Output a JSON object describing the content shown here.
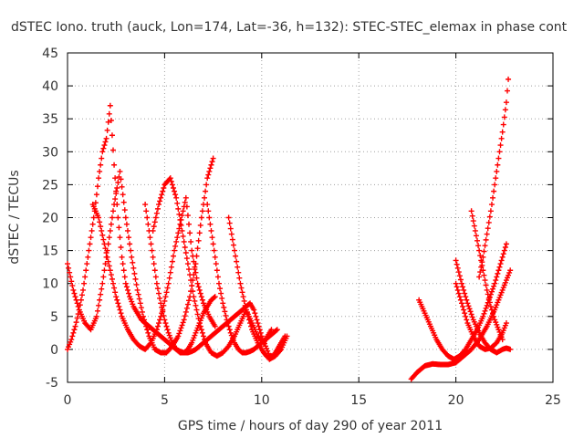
{
  "chart_data": {
    "type": "scatter",
    "title": "dSTEC Iono. truth (auck, Lon=174, Lat=-36, h=132): STEC-STEC_elemax in phase cont",
    "xlabel": "GPS time / hours of day 290 of year 2011",
    "ylabel": "dSTEC  / TECUs",
    "xlim": [
      0,
      25
    ],
    "ylim": [
      -5,
      45
    ],
    "xticks": [
      "0",
      "5",
      "10",
      "15",
      "20",
      "25"
    ],
    "yticks": [
      "-5",
      "0",
      "5",
      "10",
      "15",
      "20",
      "25",
      "30",
      "35",
      "40",
      "45"
    ],
    "grid": true,
    "marker": "plus",
    "color": "#ff0000",
    "series": [
      {
        "x": [
          0.0,
          0.2,
          0.4,
          0.6,
          0.8,
          1.0,
          1.2,
          1.4,
          1.6,
          1.8,
          2.0,
          2.2,
          2.4,
          2.6,
          2.8,
          3.0,
          3.2,
          3.4,
          3.6,
          3.8,
          4.0,
          4.2,
          4.4,
          4.6,
          4.8,
          5.0,
          5.2,
          5.4,
          5.6,
          5.8,
          6.0,
          6.2,
          6.4,
          6.6,
          6.8,
          7.0,
          7.2,
          7.4,
          7.6,
          7.8,
          8.0,
          8.2,
          8.4,
          8.6,
          8.8,
          9.0,
          9.2,
          9.4,
          9.6,
          9.8,
          10.0,
          10.2,
          10.4,
          10.6,
          10.8,
          11.0,
          11.2
        ],
        "y": [
          0.0,
          1.5,
          3.5,
          6.0,
          9.0,
          13.0,
          17.0,
          21.0,
          26.0,
          30.0,
          32.0,
          37.0,
          28.0,
          20.0,
          14.0,
          10.0,
          8.0,
          6.5,
          5.5,
          4.5,
          4.0,
          3.5,
          3.0,
          2.5,
          2.0,
          1.5,
          1.0,
          0.5,
          0.0,
          -0.3,
          -0.5,
          -0.5,
          -0.3,
          0.0,
          0.5,
          1.0,
          1.5,
          2.0,
          2.5,
          3.0,
          3.5,
          4.0,
          4.5,
          5.0,
          5.5,
          6.0,
          6.5,
          7.0,
          6.0,
          4.0,
          2.0,
          0.5,
          -1.0,
          -1.0,
          0.0,
          1.0,
          2.0
        ]
      },
      {
        "x": [
          0.0,
          0.3,
          0.6,
          0.9,
          1.2,
          1.5,
          1.8,
          2.1,
          2.4,
          2.7,
          3.0,
          3.3,
          3.6,
          3.9,
          4.2,
          4.5,
          4.8,
          5.1,
          5.4,
          5.7,
          6.0,
          6.3,
          6.6,
          6.9,
          7.2,
          7.5
        ],
        "y": [
          13.0,
          9.0,
          6.0,
          4.0,
          3.0,
          5.0,
          10.0,
          16.0,
          22.0,
          27.0,
          20.0,
          14.0,
          9.0,
          5.0,
          2.0,
          0.0,
          -0.5,
          -0.5,
          0.5,
          2.0,
          4.5,
          8.0,
          13.0,
          20.0,
          26.0,
          29.0
        ]
      },
      {
        "x": [
          1.3,
          1.6,
          1.9,
          2.2,
          2.5,
          2.8,
          3.1,
          3.4,
          3.7,
          4.0,
          4.3,
          4.6,
          4.9,
          5.2,
          5.5,
          5.8,
          6.1,
          6.4,
          6.7,
          7.0,
          7.3,
          7.6
        ],
        "y": [
          22.0,
          20.0,
          16.0,
          12.0,
          8.0,
          5.0,
          3.0,
          1.5,
          0.5,
          0.0,
          1.0,
          3.0,
          6.0,
          10.0,
          15.0,
          19.0,
          23.0,
          15.0,
          10.0,
          7.0,
          5.0,
          3.5
        ]
      },
      {
        "x": [
          4.0,
          4.2,
          4.4,
          4.6,
          4.8,
          5.0,
          5.2,
          5.4,
          5.6,
          5.8,
          6.0,
          6.2,
          6.4,
          6.6,
          6.8,
          7.0,
          7.2,
          7.4,
          7.6
        ],
        "y": [
          22.0,
          18.0,
          14.0,
          10.0,
          7.0,
          4.5,
          2.5,
          1.0,
          0.0,
          -0.5,
          -0.5,
          0.0,
          1.0,
          2.5,
          4.0,
          5.5,
          6.5,
          7.5,
          8.0
        ]
      },
      {
        "x": [
          4.4,
          4.7,
          5.0,
          5.3,
          5.6,
          5.9,
          6.2,
          6.5,
          6.8,
          7.1,
          7.4,
          7.7,
          8.0,
          8.3,
          8.6,
          8.9,
          9.2,
          9.5,
          9.8,
          10.1,
          10.5
        ],
        "y": [
          18.0,
          22.0,
          25.0,
          26.0,
          23.0,
          18.0,
          13.0,
          8.0,
          4.0,
          1.0,
          -0.5,
          -1.0,
          -0.5,
          0.5,
          2.0,
          4.0,
          6.0,
          4.0,
          2.0,
          1.0,
          3.0
        ]
      },
      {
        "x": [
          7.2,
          7.4,
          7.6,
          7.8,
          8.0,
          8.2,
          8.4,
          8.6,
          8.8,
          9.0,
          9.2,
          9.4,
          9.6,
          9.8,
          10.0,
          10.2,
          10.4,
          10.6,
          10.8
        ],
        "y": [
          22.0,
          18.0,
          14.0,
          10.0,
          7.0,
          4.5,
          2.5,
          1.0,
          0.0,
          -0.5,
          -0.5,
          -0.3,
          0.0,
          0.5,
          1.0,
          1.5,
          2.0,
          2.5,
          3.0
        ]
      },
      {
        "x": [
          8.3,
          8.6,
          8.9,
          9.2,
          9.5,
          9.8,
          10.1,
          10.4,
          10.7,
          11.0,
          11.3
        ],
        "y": [
          20.0,
          15.0,
          10.0,
          6.0,
          3.0,
          1.0,
          -0.5,
          -1.5,
          -1.0,
          0.0,
          2.0
        ]
      },
      {
        "x": [
          17.7,
          18.0,
          18.4,
          18.8,
          19.2,
          19.6,
          20.0,
          20.4,
          20.8,
          21.2,
          21.6,
          22.0,
          22.4,
          22.8
        ],
        "y": [
          -4.5,
          -3.5,
          -2.5,
          -2.2,
          -2.3,
          -2.3,
          -2.0,
          -1.0,
          0.0,
          1.5,
          3.5,
          6.0,
          9.0,
          12.0
        ]
      },
      {
        "x": [
          18.1,
          18.4,
          18.7,
          19.0,
          19.3,
          19.6,
          19.9,
          20.2,
          20.5,
          20.8,
          21.1,
          21.4,
          21.7,
          22.0,
          22.3,
          22.6
        ],
        "y": [
          7.5,
          5.5,
          3.5,
          1.5,
          0.0,
          -1.0,
          -1.5,
          -1.0,
          0.0,
          1.5,
          3.0,
          5.0,
          7.5,
          10.0,
          13.0,
          16.0
        ]
      },
      {
        "x": [
          20.0,
          20.3,
          20.6,
          20.9,
          21.2,
          21.5,
          21.8,
          22.1,
          22.4,
          22.6,
          22.8
        ],
        "y": [
          13.5,
          10.0,
          7.0,
          4.5,
          2.5,
          1.0,
          0.0,
          -0.5,
          0.0,
          0.2,
          0.0
        ]
      },
      {
        "x": [
          20.0,
          20.3,
          20.6,
          20.9,
          21.2,
          21.5,
          21.8,
          22.1,
          22.4,
          22.6
        ],
        "y": [
          10.0,
          7.0,
          4.0,
          2.0,
          0.5,
          0.0,
          0.2,
          1.0,
          2.5,
          4.0
        ]
      },
      {
        "x": [
          20.8,
          21.0,
          21.2,
          21.4,
          21.6,
          21.8,
          22.0,
          22.2,
          22.4
        ],
        "y": [
          21.0,
          18.0,
          15.0,
          12.0,
          9.0,
          6.5,
          4.5,
          3.0,
          1.5
        ]
      },
      {
        "x": [
          21.2,
          21.4,
          21.6,
          21.8,
          22.0,
          22.2,
          22.4,
          22.6,
          22.7
        ],
        "y": [
          11.0,
          14.0,
          17.5,
          21.0,
          25.0,
          29.0,
          33.0,
          37.5,
          41.0
        ]
      }
    ]
  }
}
